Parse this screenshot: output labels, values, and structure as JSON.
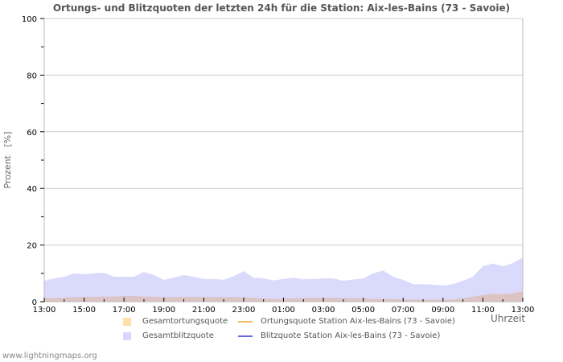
{
  "title": "Ortungs- und Blitzquoten der letzten 24h für die Station: Aix-les-Bains (73 - Savoie)",
  "footer": "www.lightningmaps.org",
  "axes": {
    "ylabel": "Prozent   [%]",
    "xlabel": "Uhrzeit"
  },
  "legend": [
    {
      "label": "Gesamtortungsquote",
      "kind": "box",
      "color": "#ffe0a8"
    },
    {
      "label": "Ortungsquote Station Aix-les-Bains (73 - Savoie)",
      "kind": "line",
      "color": "#f0c060"
    },
    {
      "label": "Gesamtblitzquote",
      "kind": "box",
      "color": "#d8d8ff"
    },
    {
      "label": "Blitzquote Station Aix-les-Bains (73 - Savoie)",
      "kind": "line",
      "color": "#6a6ae0"
    }
  ],
  "colors": {
    "blitz_fill": "#dadafc",
    "ortung_fill": "#dcc4c4",
    "grid": "#cccccc",
    "axis": "#bbbbbb"
  },
  "chart_data": {
    "type": "area",
    "title": "Ortungs- und Blitzquoten der letzten 24h für die Station: Aix-les-Bains (73 - Savoie)",
    "xlabel": "Uhrzeit",
    "ylabel": "Prozent [%]",
    "ylim": [
      0,
      100
    ],
    "yticks": [
      0,
      20,
      40,
      60,
      80,
      100
    ],
    "xticks": [
      "13:00",
      "15:00",
      "17:00",
      "19:00",
      "21:00",
      "23:00",
      "01:00",
      "03:00",
      "05:00",
      "07:00",
      "09:00",
      "11:00",
      "13:00"
    ],
    "grid": true,
    "legend_position": "bottom",
    "x": [
      "13:00",
      "13:30",
      "14:00",
      "14:30",
      "15:00",
      "15:30",
      "16:00",
      "16:30",
      "17:00",
      "17:30",
      "18:00",
      "18:30",
      "19:00",
      "19:30",
      "20:00",
      "20:30",
      "21:00",
      "21:30",
      "22:00",
      "22:30",
      "23:00",
      "23:30",
      "00:00",
      "00:30",
      "01:00",
      "01:30",
      "02:00",
      "02:30",
      "03:00",
      "03:30",
      "04:00",
      "04:30",
      "05:00",
      "05:30",
      "06:00",
      "06:30",
      "07:00",
      "07:30",
      "08:00",
      "08:30",
      "09:00",
      "09:30",
      "10:00",
      "10:30",
      "11:00",
      "11:30",
      "12:00",
      "12:30",
      "13:00"
    ],
    "series": [
      {
        "name": "Gesamtblitzquote",
        "values": [
          7.4,
          8.2,
          8.8,
          10.0,
          9.7,
          10.0,
          10.2,
          8.8,
          8.8,
          8.8,
          10.5,
          9.4,
          7.7,
          8.5,
          9.4,
          8.8,
          8.0,
          8.0,
          7.7,
          9.0,
          10.8,
          8.5,
          8.2,
          7.5,
          8.0,
          8.5,
          7.9,
          8.0,
          8.2,
          8.2,
          7.4,
          7.8,
          8.2,
          10.0,
          11.0,
          8.8,
          7.7,
          6.2,
          6.2,
          6.0,
          5.7,
          6.2,
          7.4,
          8.8,
          12.5,
          13.5,
          12.5,
          13.6,
          15.6
        ]
      },
      {
        "name": "Gesamtortungsquote",
        "values": [
          1.2,
          1.3,
          1.4,
          1.6,
          1.7,
          1.7,
          1.8,
          1.8,
          2.0,
          2.0,
          1.8,
          1.8,
          1.6,
          1.6,
          1.7,
          1.7,
          1.6,
          1.6,
          1.6,
          1.6,
          1.6,
          1.3,
          1.1,
          1.0,
          1.0,
          1.1,
          1.3,
          1.4,
          1.4,
          1.3,
          1.3,
          1.2,
          1.1,
          1.0,
          1.0,
          0.9,
          0.8,
          0.8,
          0.7,
          0.7,
          0.7,
          0.8,
          1.2,
          1.8,
          2.4,
          2.8,
          2.6,
          3.0,
          3.6
        ]
      },
      {
        "name": "Ortungsquote Station Aix-les-Bains (73 - Savoie)",
        "values": []
      },
      {
        "name": "Blitzquote Station Aix-les-Bains (73 - Savoie)",
        "values": []
      }
    ]
  }
}
